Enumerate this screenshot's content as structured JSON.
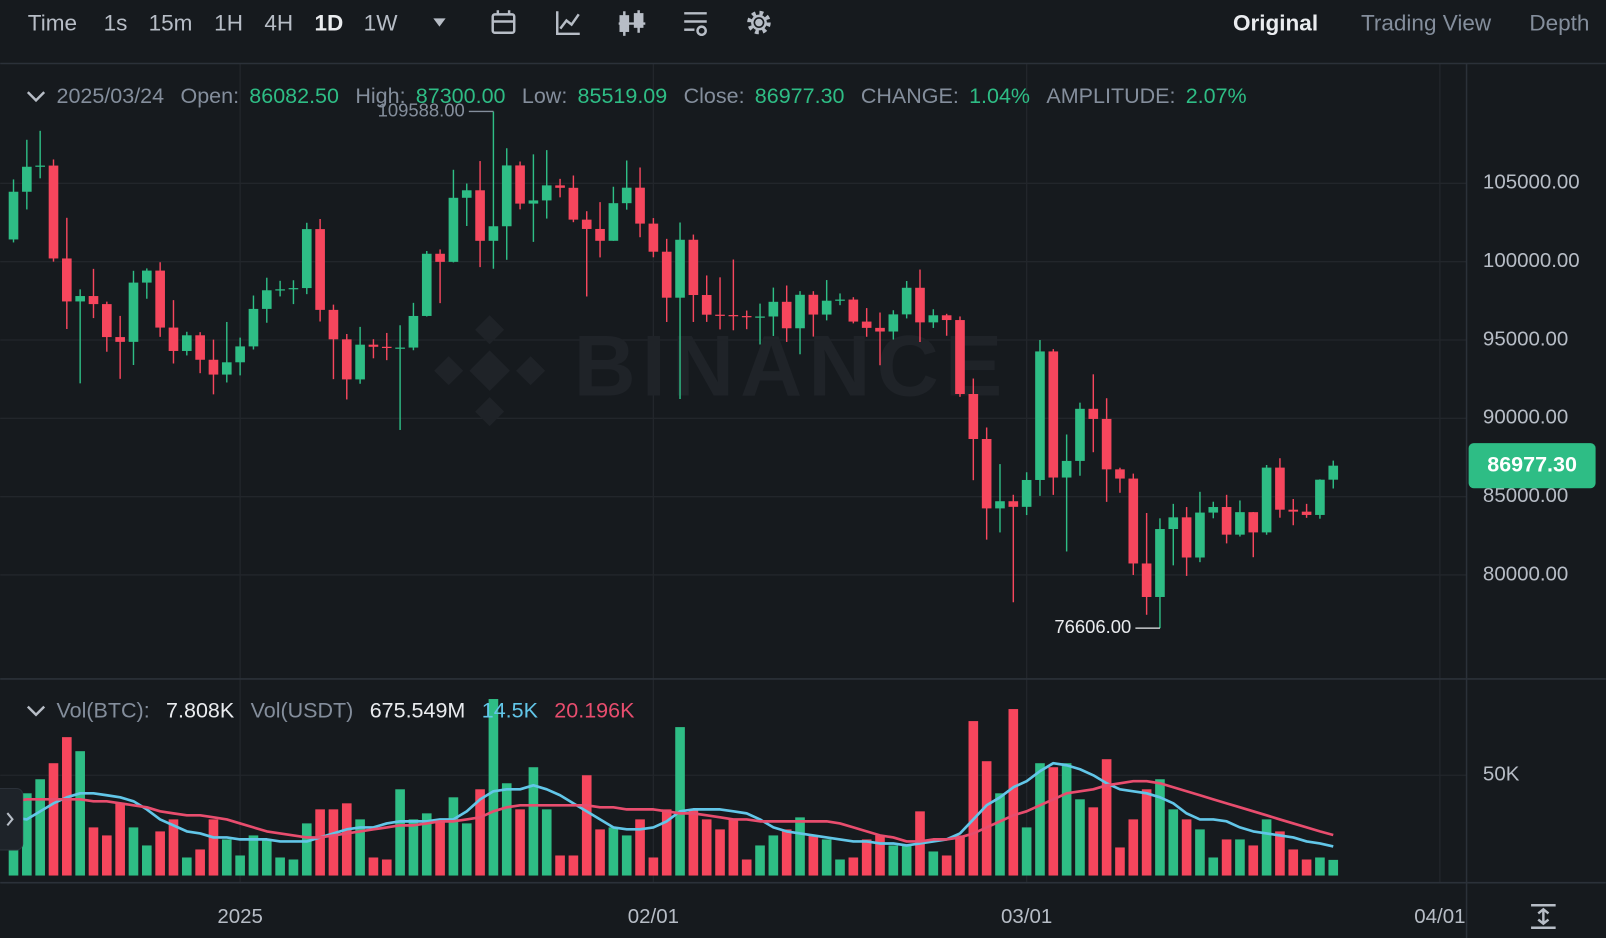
{
  "toolbar": {
    "intervals": [
      "Time",
      "1s",
      "15m",
      "1H",
      "4H",
      "1D",
      "1W"
    ],
    "views": [
      "Original",
      "Trading View",
      "Depth"
    ]
  },
  "watermark": "BINANCE",
  "chart_data": [
    {
      "type": "candlestick",
      "up_color": "#2ebd85",
      "down_color": "#f6465d",
      "grid": true,
      "legend": [
        {
          "label": "Open:",
          "value": "86082.50"
        },
        {
          "label": "High:",
          "value": "87300.00"
        },
        {
          "label": "Low:",
          "value": "85519.09"
        },
        {
          "label": "Close:",
          "value": "86977.30"
        },
        {
          "label": "CHANGE:",
          "value": "1.04%"
        },
        {
          "label": "AMPLITUDE:",
          "value": "2.07%"
        }
      ],
      "annotations": [
        {
          "text": "109588.00",
          "value": 109588
        },
        {
          "text": "76606.00",
          "value": 76606
        }
      ],
      "last_price": "86977.30",
      "xlim": [
        "2024/12/14",
        "2025/04/03"
      ],
      "xticks": [
        {
          "value": "2025/01/01",
          "label": "2025"
        },
        {
          "value": "2025/02/01",
          "label": "02/01"
        },
        {
          "value": "2025/03/01",
          "label": "03/01"
        },
        {
          "value": "2025/04/01",
          "label": "04/01"
        }
      ],
      "ylim": [
        73430,
        112650
      ],
      "yticks": [
        {
          "value": 80000,
          "label": "80000.00"
        },
        {
          "value": 85000,
          "label": "85000.00"
        },
        {
          "value": 90000,
          "label": "90000.00"
        },
        {
          "value": 95000,
          "label": "95000.00"
        },
        {
          "value": 100000,
          "label": "100000.00"
        },
        {
          "value": 105000,
          "label": "105000.00"
        }
      ],
      "x": [
        "2024/12/15",
        "2024/12/16",
        "2024/12/17",
        "2024/12/18",
        "2024/12/19",
        "2024/12/20",
        "2024/12/21",
        "2024/12/22",
        "2024/12/23",
        "2024/12/24",
        "2024/12/25",
        "2024/12/26",
        "2024/12/27",
        "2024/12/28",
        "2024/12/29",
        "2024/12/30",
        "2024/12/31",
        "2025/01/01",
        "2025/01/02",
        "2025/01/03",
        "2025/01/04",
        "2025/01/05",
        "2025/01/06",
        "2025/01/07",
        "2025/01/08",
        "2025/01/09",
        "2025/01/10",
        "2025/01/11",
        "2025/01/12",
        "2025/01/13",
        "2025/01/14",
        "2025/01/15",
        "2025/01/16",
        "2025/01/17",
        "2025/01/18",
        "2025/01/19",
        "2025/01/20",
        "2025/01/21",
        "2025/01/22",
        "2025/01/23",
        "2025/01/24",
        "2025/01/25",
        "2025/01/26",
        "2025/01/27",
        "2025/01/28",
        "2025/01/29",
        "2025/01/30",
        "2025/01/31",
        "2025/02/01",
        "2025/02/02",
        "2025/02/03",
        "2025/02/04",
        "2025/02/05",
        "2025/02/06",
        "2025/02/07",
        "2025/02/08",
        "2025/02/09",
        "2025/02/10",
        "2025/02/11",
        "2025/02/12",
        "2025/02/13",
        "2025/02/14",
        "2025/02/15",
        "2025/02/16",
        "2025/02/17",
        "2025/02/18",
        "2025/02/19",
        "2025/02/20",
        "2025/02/21",
        "2025/02/22",
        "2025/02/23",
        "2025/02/24",
        "2025/02/25",
        "2025/02/26",
        "2025/02/27",
        "2025/02/28",
        "2025/03/01",
        "2025/03/02",
        "2025/03/03",
        "2025/03/04",
        "2025/03/05",
        "2025/03/06",
        "2025/03/07",
        "2025/03/08",
        "2025/03/09",
        "2025/03/10",
        "2025/03/11",
        "2025/03/12",
        "2025/03/13",
        "2025/03/14",
        "2025/03/15",
        "2025/03/16",
        "2025/03/17",
        "2025/03/18",
        "2025/03/19",
        "2025/03/20",
        "2025/03/21",
        "2025/03/22",
        "2025/03/23",
        "2025/03/24"
      ],
      "open": [
        101417,
        104463,
        106058,
        106133,
        100204,
        97461,
        97805,
        97291,
        95186,
        94881,
        98663,
        99430,
        95792,
        94299,
        95300,
        93738,
        92792,
        93576,
        94591,
        96984,
        98174,
        98236,
        98314,
        102078,
        96922,
        95043,
        92484,
        94701,
        94566,
        94488,
        94516,
        96534,
        100504,
        99987,
        104077,
        104556,
        101331,
        102260,
        106143,
        103706,
        103910,
        104870,
        104714,
        102682,
        102087,
        101332,
        103733,
        104722,
        102429,
        100635,
        97700,
        101398,
        97871,
        96615,
        96593,
        96529,
        96482,
        96500,
        97437,
        95748,
        97885,
        96623,
        97508,
        97580,
        96175,
        95773,
        95540,
        96635,
        98333,
        96125,
        96577,
        96273,
        91552,
        88680,
        84250,
        84708,
        84349,
        86064,
        94270,
        86220,
        87281,
        90607,
        89961,
        86742,
        86154,
        80734,
        78595,
        82932,
        83680,
        81115,
        83983,
        84338,
        82574,
        84010,
        82718,
        86854,
        84167,
        84043,
        83832,
        86082.5
      ],
      "high": [
        105250,
        107780,
        108353,
        106524,
        102800,
        98233,
        99540,
        97448,
        96538,
        99416,
        99569,
        99963,
        97544,
        95525,
        95500,
        95024,
        96150,
        95151,
        97839,
        98976,
        98778,
        98813,
        102482,
        102724,
        97258,
        95382,
        95837,
        95050,
        95450,
        95940,
        97371,
        100681,
        100781,
        105865,
        104988,
        106422,
        109588,
        107240,
        106394,
        106850,
        107120,
        105286,
        105500,
        103221,
        103800,
        104782,
        106457,
        106012,
        102783,
        101456,
        102500,
        101730,
        99120,
        99000,
        100137,
        96880,
        97323,
        98345,
        98478,
        98119,
        98116,
        98826,
        97972,
        97732,
        97037,
        96753,
        96899,
        98766,
        99497,
        96962,
        96671,
        96503,
        92540,
        89414,
        87078,
        85120,
        86558,
        95000,
        94416,
        88967,
        91000,
        92810,
        91283,
        86847,
        86471,
        83955,
        83617,
        84539,
        84336,
        85309,
        84676,
        85117,
        84756,
        84021,
        87021,
        87453,
        84850,
        84539,
        86106,
        87300
      ],
      "low": [
        101227,
        103333,
        105321,
        100000,
        95700,
        92232,
        96398,
        94250,
        92520,
        93404,
        97632,
        95199,
        93500,
        94014,
        92881,
        91530,
        92288,
        92742,
        94392,
        96100,
        97781,
        97291,
        97926,
        96181,
        92500,
        91203,
        92206,
        93831,
        93712,
        89256,
        94346,
        96500,
        97352,
        99950,
        102277,
        99651,
        99550,
        100119,
        103339,
        101262,
        102750,
        104106,
        102520,
        97777,
        100272,
        101328,
        103320,
        101560,
        100279,
        96150,
        91231,
        96150,
        96155,
        95676,
        95620,
        95688,
        94713,
        95256,
        94876,
        94088,
        95217,
        96252,
        97223,
        96062,
        95205,
        93388,
        95029,
        96378,
        94871,
        95770,
        95270,
        91371,
        86050,
        82256,
        82716,
        78258,
        83824,
        85050,
        85117,
        81500,
        86334,
        87836,
        84667,
        85247,
        80000,
        77459,
        76606,
        80614,
        79939,
        80818,
        83618,
        82017,
        82456,
        81134,
        82569,
        83655,
        83175,
        83647,
        83592,
        85519.09
      ],
      "close": [
        104463,
        106058,
        106133,
        100204,
        97461,
        97805,
        97291,
        95186,
        94881,
        98663,
        99430,
        95792,
        94299,
        95300,
        93738,
        92792,
        93576,
        94591,
        96984,
        98174,
        98236,
        98314,
        102078,
        96922,
        95043,
        92484,
        94701,
        94566,
        94488,
        94516,
        96534,
        100504,
        99987,
        104077,
        104556,
        101331,
        102260,
        106143,
        103706,
        103910,
        104870,
        104714,
        102682,
        102087,
        101332,
        103733,
        104722,
        102429,
        100635,
        97700,
        101398,
        97871,
        96615,
        96593,
        96529,
        96482,
        96500,
        97437,
        95748,
        97885,
        96623,
        97508,
        97580,
        96175,
        95773,
        95540,
        96635,
        98333,
        96125,
        96577,
        96273,
        91552,
        88680,
        84250,
        84708,
        84349,
        86064,
        94270,
        86220,
        87281,
        90607,
        89961,
        86742,
        86154,
        80734,
        78595,
        82932,
        83680,
        81115,
        83983,
        84338,
        82574,
        84010,
        82718,
        86854,
        84167,
        84043,
        83832,
        86082,
        86977.3
      ]
    },
    {
      "type": "volume",
      "grid": true,
      "legend": [
        {
          "label": "Vol(BTC):",
          "value": "7.808K"
        },
        {
          "label": "Vol(USDT)",
          "value": "675.549M"
        }
      ],
      "ylim": [
        0,
        97000
      ],
      "yticks": [
        {
          "value": 50000,
          "label": "50K"
        }
      ],
      "values": [
        33000,
        41000,
        48000,
        56000,
        69000,
        62000,
        24000,
        20000,
        36000,
        24000,
        15000,
        22000,
        28000,
        9000,
        13000,
        28000,
        18000,
        10000,
        20000,
        18000,
        9000,
        8000,
        26000,
        33000,
        33000,
        36000,
        28000,
        9000,
        8000,
        43000,
        28000,
        31000,
        28000,
        39000,
        26000,
        43000,
        88000,
        46000,
        33000,
        54000,
        33000,
        10000,
        10000,
        50000,
        23000,
        24000,
        20000,
        28000,
        9000,
        33000,
        74000,
        33000,
        28000,
        23000,
        28000,
        8000,
        15000,
        20000,
        23000,
        29000,
        20000,
        18000,
        8000,
        9000,
        18000,
        20000,
        15000,
        15000,
        32000,
        12000,
        10000,
        20000,
        77000,
        57000,
        41000,
        83000,
        24000,
        56000,
        54000,
        56000,
        38000,
        34000,
        58000,
        14000,
        28000,
        43000,
        48000,
        33000,
        28000,
        23000,
        9000,
        18000,
        18000,
        15000,
        28000,
        22000,
        13000,
        8000,
        9000,
        7808
      ],
      "series": [
        {
          "name": "14.5K",
          "color": "#62c6e8",
          "values": [
            29000,
            28000,
            32000,
            36000,
            39000,
            41000,
            41000,
            40000,
            39000,
            37000,
            33000,
            28000,
            25000,
            22000,
            21000,
            19000,
            19000,
            18000,
            18000,
            18000,
            17000,
            17000,
            17000,
            19000,
            21000,
            23000,
            24000,
            24000,
            26000,
            27000,
            27000,
            27000,
            28000,
            28000,
            32000,
            38000,
            42000,
            43000,
            43000,
            45000,
            43000,
            40000,
            36000,
            32000,
            28000,
            24000,
            23000,
            23000,
            24000,
            27000,
            32000,
            33000,
            33000,
            33000,
            32000,
            31000,
            28000,
            24000,
            22000,
            21000,
            20000,
            19000,
            18000,
            17000,
            17000,
            16000,
            16000,
            15000,
            16000,
            17000,
            18000,
            21000,
            28000,
            35000,
            39000,
            44000,
            47000,
            52000,
            56000,
            55000,
            53000,
            50000,
            46000,
            43000,
            42000,
            41000,
            39000,
            36000,
            31000,
            28000,
            28000,
            27000,
            24000,
            22000,
            21000,
            20000,
            19000,
            17000,
            16000,
            14500
          ]
        },
        {
          "name": "20.196K",
          "color": "#e84d6e",
          "values": [
            37000,
            38000,
            38000,
            38000,
            38000,
            38000,
            37000,
            37000,
            36000,
            35000,
            34000,
            32000,
            31000,
            30000,
            30000,
            29000,
            28000,
            26000,
            24000,
            22000,
            21000,
            20000,
            19000,
            19000,
            20000,
            21000,
            22000,
            23000,
            24000,
            25000,
            25000,
            26000,
            27000,
            27000,
            28000,
            29000,
            32000,
            34000,
            35000,
            35000,
            35000,
            35000,
            35000,
            35000,
            34000,
            34000,
            33000,
            33000,
            33000,
            32000,
            31000,
            31000,
            30000,
            29000,
            28000,
            28000,
            27000,
            27000,
            27000,
            27000,
            27000,
            27000,
            26000,
            24000,
            22000,
            20000,
            19000,
            17000,
            17000,
            18000,
            18000,
            19000,
            21000,
            24000,
            27000,
            30000,
            32000,
            35000,
            38000,
            41000,
            42000,
            43000,
            45000,
            46000,
            47000,
            47000,
            46000,
            44000,
            42000,
            40000,
            38000,
            36000,
            34000,
            32000,
            30000,
            28000,
            26000,
            24000,
            22000,
            20196
          ]
        }
      ]
    }
  ]
}
